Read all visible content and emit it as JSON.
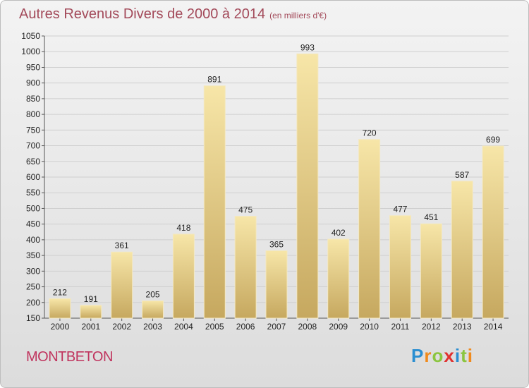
{
  "title": "Autres Revenus Divers de 2000 à 2014",
  "subtitle": "(en milliers d'€)",
  "location": "MONTBETON",
  "logo": {
    "text": "Proxiti",
    "letters": [
      {
        "ch": "P",
        "color": "#2a8ed1"
      },
      {
        "ch": "r",
        "color": "#f08a1c"
      },
      {
        "ch": "o",
        "color": "#8bc53f"
      },
      {
        "ch": "x",
        "color": "#e0312f"
      },
      {
        "ch": "i",
        "color": "#2a8ed1"
      },
      {
        "ch": "t",
        "color": "#8bc53f"
      },
      {
        "ch": "i",
        "color": "#f08a1c"
      }
    ]
  },
  "chart_data": {
    "type": "bar",
    "categories": [
      "2000",
      "2001",
      "2002",
      "2003",
      "2004",
      "2005",
      "2006",
      "2007",
      "2008",
      "2009",
      "2010",
      "2011",
      "2012",
      "2013",
      "2014"
    ],
    "values": [
      212,
      191,
      361,
      205,
      418,
      891,
      475,
      365,
      993,
      402,
      720,
      477,
      451,
      587,
      699
    ],
    "ylim": [
      150,
      1050
    ],
    "yticks": [
      150,
      200,
      250,
      300,
      350,
      400,
      450,
      500,
      550,
      600,
      650,
      700,
      750,
      800,
      850,
      900,
      950,
      1000,
      1050
    ],
    "grid": true,
    "bar_color_light": "#f6e3a3",
    "bar_color_dark": "#c9ac63"
  }
}
